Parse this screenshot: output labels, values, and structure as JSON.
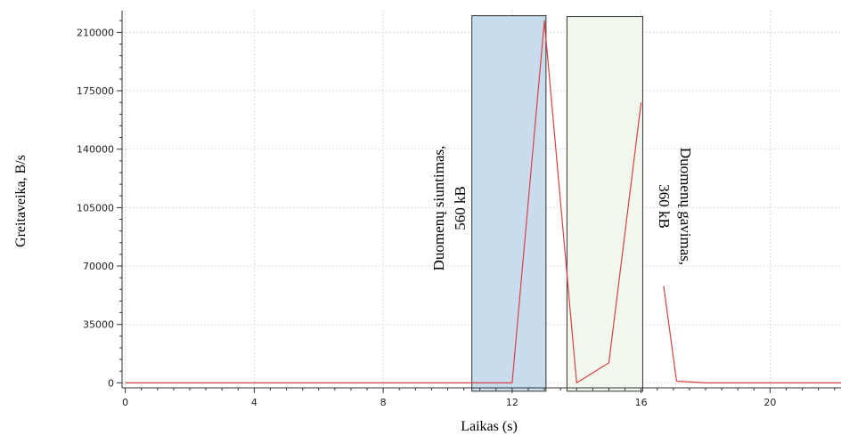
{
  "chart_data": {
    "type": "line",
    "xlabel": "Laikas (s)",
    "ylabel": "Greitaveika, B/s",
    "xlim": [
      -0.1,
      22.2
    ],
    "ylim": [
      -3000,
      223000
    ],
    "x_ticks": [
      0,
      4,
      8,
      12,
      16,
      20
    ],
    "y_ticks": [
      0,
      35000,
      70000,
      105000,
      140000,
      175000,
      210000
    ],
    "grid": true,
    "series": [
      {
        "color": "#d94040",
        "points": [
          [
            0,
            0
          ],
          [
            1,
            0
          ],
          [
            2,
            0
          ],
          [
            3,
            0
          ],
          [
            4,
            0
          ],
          [
            5,
            0
          ],
          [
            6,
            0
          ],
          [
            7,
            0
          ],
          [
            8,
            0
          ],
          [
            9,
            0
          ],
          [
            10,
            0
          ],
          [
            11,
            0
          ],
          [
            12,
            0
          ],
          [
            13,
            217000
          ],
          [
            14,
            0
          ],
          [
            15,
            12000
          ],
          [
            16,
            168000
          ],
          [
            16.7,
            58000
          ],
          [
            17.1,
            1000
          ],
          [
            18,
            0
          ],
          [
            19,
            0
          ],
          [
            20,
            0
          ],
          [
            21,
            0
          ],
          [
            22.2,
            0
          ]
        ],
        "breaks_after_x": [
          16
        ]
      }
    ],
    "regions": [
      {
        "x0": 10.75,
        "x1": 13.05,
        "y0": -5000,
        "y1": 220000,
        "fill": "#c9dcee",
        "stroke": "#333333"
      },
      {
        "x0": 13.7,
        "x1": 16.05,
        "y0": -5000,
        "y1": 219500,
        "fill": "#f3f8ee",
        "stroke": "#333333"
      }
    ],
    "annotations": [
      {
        "lines": [
          "Duomenų siuntimas,",
          "560 kB"
        ],
        "orientation": "rotated-ccw"
      },
      {
        "lines": [
          "Duomenų gavimas,",
          "360 kB"
        ],
        "orientation": "rotated-cw"
      }
    ]
  }
}
